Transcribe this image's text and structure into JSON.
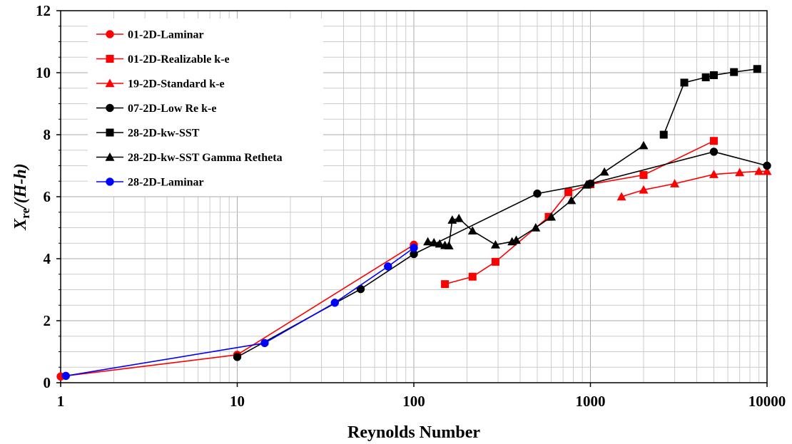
{
  "chart_data": {
    "type": "scatter",
    "x_scale": "log",
    "xlim": [
      1,
      10000
    ],
    "ylim": [
      0,
      12
    ],
    "grid": true,
    "legend_position": "top-left",
    "xlabel": "Reynolds Number",
    "ylabel": {
      "main": "X",
      "sub": "re",
      "rest": "/(H-h)"
    },
    "x_ticks": [
      "1",
      "10",
      "100",
      "1000",
      "10000"
    ],
    "y_ticks": [
      "0",
      "2",
      "4",
      "6",
      "8",
      "10",
      "12"
    ],
    "series": [
      {
        "name": "01-2D-Laminar",
        "color": "#ff0000",
        "marker": "circle",
        "points": [
          [
            1,
            0.2
          ],
          [
            10,
            0.9
          ],
          [
            100,
            4.45
          ]
        ]
      },
      {
        "name": "01-2D-Realizable k-e",
        "color": "#ff0000",
        "marker": "square",
        "points": [
          [
            150,
            3.18
          ],
          [
            215,
            3.42
          ],
          [
            290,
            3.9
          ],
          [
            580,
            5.35
          ],
          [
            750,
            6.15
          ],
          [
            1000,
            6.4
          ],
          [
            2000,
            6.7
          ],
          [
            5000,
            7.8
          ]
        ]
      },
      {
        "name": "19-2D-Standard k-e",
        "color": "#ff0000",
        "marker": "triangle",
        "points": [
          [
            1500,
            6.0
          ],
          [
            2000,
            6.22
          ],
          [
            3000,
            6.42
          ],
          [
            5000,
            6.72
          ],
          [
            7000,
            6.78
          ],
          [
            9000,
            6.82
          ],
          [
            10000,
            6.82
          ]
        ]
      },
      {
        "name": "07-2D-Low Re k-e",
        "color": "#000000",
        "marker": "circle",
        "points": [
          [
            10,
            0.83
          ],
          [
            50,
            3.02
          ],
          [
            100,
            4.15
          ],
          [
            500,
            6.1
          ],
          [
            1000,
            6.42
          ],
          [
            5000,
            7.45
          ],
          [
            10000,
            7.0
          ]
        ]
      },
      {
        "name": "28-2D-kw-SST",
        "color": "#000000",
        "marker": "square",
        "points": [
          [
            2600,
            8.0
          ],
          [
            3400,
            9.68
          ],
          [
            4500,
            9.85
          ],
          [
            5000,
            9.92
          ],
          [
            6500,
            10.02
          ],
          [
            8800,
            10.12
          ]
        ]
      },
      {
        "name": "28-2D-kw-SST Gamma Retheta",
        "color": "#000000",
        "marker": "triangle",
        "points": [
          [
            120,
            4.55
          ],
          [
            130,
            4.52
          ],
          [
            140,
            4.48
          ],
          [
            150,
            4.43
          ],
          [
            158,
            4.42
          ],
          [
            165,
            5.25
          ],
          [
            180,
            5.3
          ],
          [
            215,
            4.9
          ],
          [
            290,
            4.45
          ],
          [
            360,
            4.55
          ],
          [
            380,
            4.6
          ],
          [
            490,
            5.0
          ],
          [
            600,
            5.35
          ],
          [
            780,
            5.88
          ],
          [
            950,
            6.38
          ],
          [
            1200,
            6.8
          ],
          [
            2000,
            7.65
          ]
        ]
      },
      {
        "name": "28-2D-Laminar",
        "color": "#0000ff",
        "marker": "circle",
        "points": [
          [
            1.07,
            0.22
          ],
          [
            14.3,
            1.28
          ],
          [
            35.7,
            2.58
          ],
          [
            71.4,
            3.75
          ],
          [
            100,
            4.35
          ]
        ]
      }
    ]
  }
}
